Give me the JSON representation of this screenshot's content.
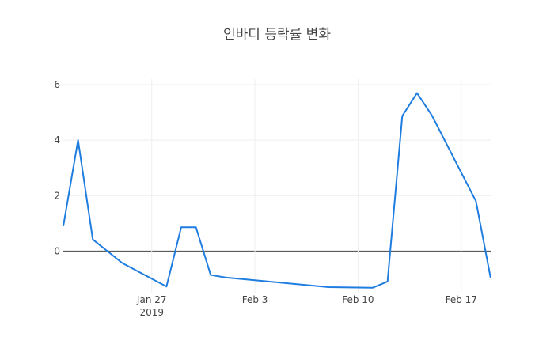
{
  "chart_data": {
    "type": "line",
    "title": "인바디 등락률 변화",
    "xlabel": "",
    "ylabel": "",
    "x": [
      "2019-01-21",
      "2019-01-22",
      "2019-01-23",
      "2019-01-25",
      "2019-01-28",
      "2019-01-29",
      "2019-01-30",
      "2019-01-31",
      "2019-02-01",
      "2019-02-08",
      "2019-02-11",
      "2019-02-12",
      "2019-02-13",
      "2019-02-14",
      "2019-02-15",
      "2019-02-18",
      "2019-02-19"
    ],
    "series": [
      {
        "values": [
          0.9,
          4.0,
          0.42,
          -0.43,
          -1.28,
          0.86,
          0.86,
          -0.86,
          -0.95,
          -1.3,
          -1.32,
          -1.1,
          4.87,
          5.7,
          4.9,
          1.8,
          -0.98
        ]
      }
    ],
    "ylim": [
      -1.5,
      6.2
    ],
    "yticks": [
      0,
      2,
      4,
      6
    ],
    "xticks": [
      {
        "value": "2019-01-27",
        "label": "Jan 27",
        "sublabel": "2019"
      },
      {
        "value": "2019-02-03",
        "label": "Feb 3"
      },
      {
        "value": "2019-02-10",
        "label": "Feb 10"
      },
      {
        "value": "2019-02-17",
        "label": "Feb 17"
      }
    ],
    "grid": true,
    "legend": "none",
    "line_color": "#1f7de0"
  }
}
